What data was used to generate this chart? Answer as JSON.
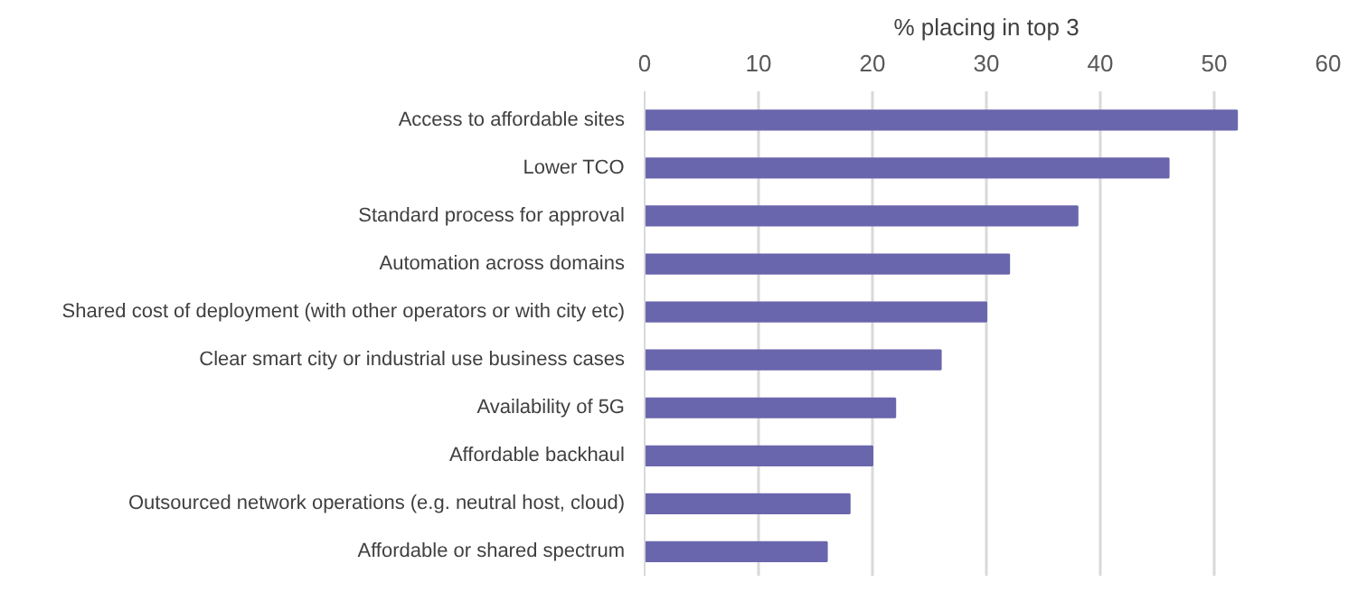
{
  "chart_data": {
    "type": "bar",
    "orientation": "horizontal",
    "xlabel": "% placing in top 3",
    "categories": [
      "Access to affordable sites",
      "Lower TCO",
      "Standard process for approval",
      "Automation across domains",
      "Shared cost of deployment (with other operators or with city etc)",
      "Clear smart city or industrial use business cases",
      "Availability of 5G",
      "Affordable backhaul",
      "Outsourced network operations (e.g. neutral host, cloud)",
      "Affordable or shared spectrum"
    ],
    "values": [
      52,
      46,
      38,
      32,
      30,
      26,
      22,
      20,
      18,
      16
    ],
    "color": "#6a66ad",
    "xlim": [
      0,
      60
    ],
    "xticks": [
      0,
      10,
      20,
      30,
      40,
      50,
      60
    ],
    "grid": "x"
  }
}
